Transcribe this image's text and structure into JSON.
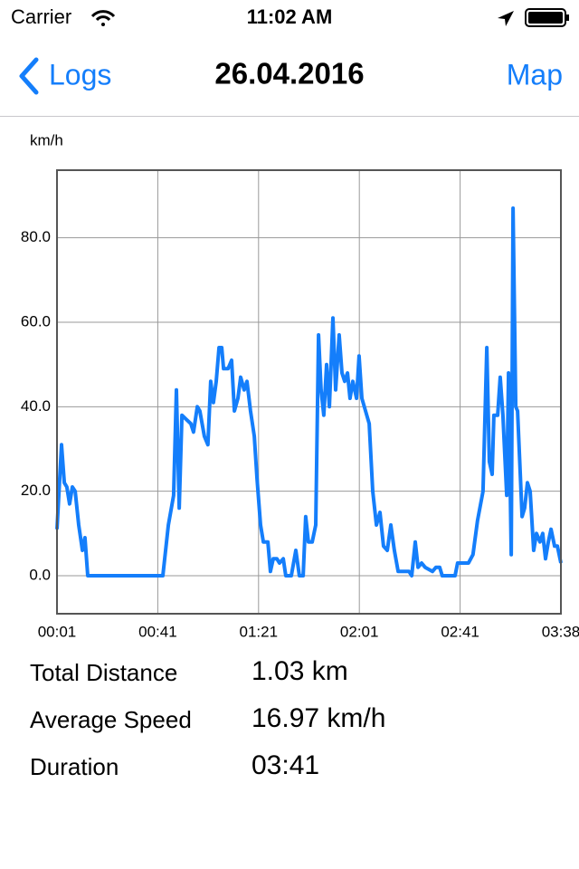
{
  "status_bar": {
    "carrier": "Carrier",
    "time": "11:02 AM"
  },
  "nav_bar": {
    "back": "Logs",
    "title": "26.04.2016",
    "action": "Map"
  },
  "chart_data": {
    "type": "line",
    "y_label": "km/h",
    "x": [
      0,
      1.8,
      2.9,
      3.9,
      5,
      6.1,
      7.2,
      8.6,
      10.1,
      11.1,
      12.2,
      42,
      44.2,
      46.3,
      47.4,
      48.5,
      49.6,
      51.3,
      53.1,
      54.2,
      55.7,
      56.7,
      58.5,
      59.9,
      61,
      62.1,
      63.2,
      64.3,
      65.4,
      66.1,
      67.9,
      69.3,
      70.4,
      71.8,
      72.9,
      74.3,
      75.4,
      76.8,
      78.3,
      79.4,
      80.8,
      81.9,
      83.7,
      84.7,
      85.8,
      87.3,
      88.3,
      89.8,
      90.8,
      93,
      94.8,
      96.2,
      97.7,
      98.7,
      99.8,
      101.3,
      102.7,
      103.8,
      104.8,
      105.9,
      107,
      108.1,
      109.5,
      110.6,
      112,
      113.1,
      114.2,
      115.3,
      116.3,
      117.4,
      118.9,
      119.9,
      121,
      123.9,
      125.3,
      126.8,
      128.2,
      129.6,
      131.1,
      132.5,
      133.9,
      135.4,
      136.8,
      139.7,
      140.8,
      142.2,
      143.3,
      144.7,
      146.1,
      149,
      150.4,
      151.9,
      152.9,
      158,
      159,
      160.8,
      163.3,
      165.1,
      166.9,
      169.1,
      170.6,
      171.6,
      172.7,
      173.4,
      174.9,
      175.9,
      177,
      178.5,
      179.2,
      180.3,
      181,
      182.1,
      182.8,
      183.8,
      184.6,
      185.6,
      186.7,
      187.8,
      189.2,
      190.3,
      191.7,
      192.8,
      193.9,
      195,
      196.1,
      197.5,
      198.6,
      200
    ],
    "series": [
      {
        "color": "#147efb",
        "values": [
          11,
          31,
          22,
          21,
          17,
          21,
          20,
          12,
          6,
          9,
          0,
          0,
          12,
          19,
          44,
          16,
          38,
          37,
          36,
          34,
          40,
          39,
          33,
          31,
          46,
          41,
          46,
          54,
          54,
          49,
          49,
          51,
          39,
          42,
          47,
          44,
          46,
          39,
          33,
          23,
          12,
          8,
          8,
          1,
          4,
          4,
          3,
          4,
          0,
          0,
          6,
          0,
          0,
          14,
          8,
          8,
          12,
          57,
          44,
          38,
          50,
          40,
          61,
          44,
          57,
          48,
          46,
          48,
          42,
          46,
          42,
          52,
          42,
          36,
          20,
          12,
          15,
          7,
          6,
          12,
          6,
          1,
          1,
          1,
          0,
          8,
          2,
          3,
          2,
          1,
          2,
          2,
          0,
          0,
          3,
          3,
          3,
          5,
          13,
          20,
          54,
          27,
          24,
          38,
          38,
          47,
          38,
          19,
          48,
          5,
          87,
          40,
          39,
          25,
          14,
          16,
          22,
          20,
          6,
          10,
          8,
          10,
          4,
          8,
          11,
          7,
          7,
          3
        ]
      }
    ],
    "xlim": [
      0,
      200
    ],
    "ylim": [
      -9,
      96
    ],
    "xticks": [
      {
        "value": 0,
        "label": "00:01"
      },
      {
        "value": 40,
        "label": "00:41"
      },
      {
        "value": 80,
        "label": "01:21"
      },
      {
        "value": 120,
        "label": "02:01"
      },
      {
        "value": 160,
        "label": "02:41"
      },
      {
        "value": 200,
        "label": "03:38"
      }
    ],
    "yticks": [
      {
        "value": 0,
        "label": "0.0"
      },
      {
        "value": 20,
        "label": "20.0"
      },
      {
        "value": 40,
        "label": "40.0"
      },
      {
        "value": 60,
        "label": "60.0"
      },
      {
        "value": 80,
        "label": "80.0"
      }
    ],
    "grid": true
  },
  "stats": [
    {
      "label": "Total Distance",
      "value": "1.03 km"
    },
    {
      "label": "Average Speed",
      "value": "16.97 km/h"
    },
    {
      "label": "Duration",
      "value": "03:41"
    }
  ]
}
